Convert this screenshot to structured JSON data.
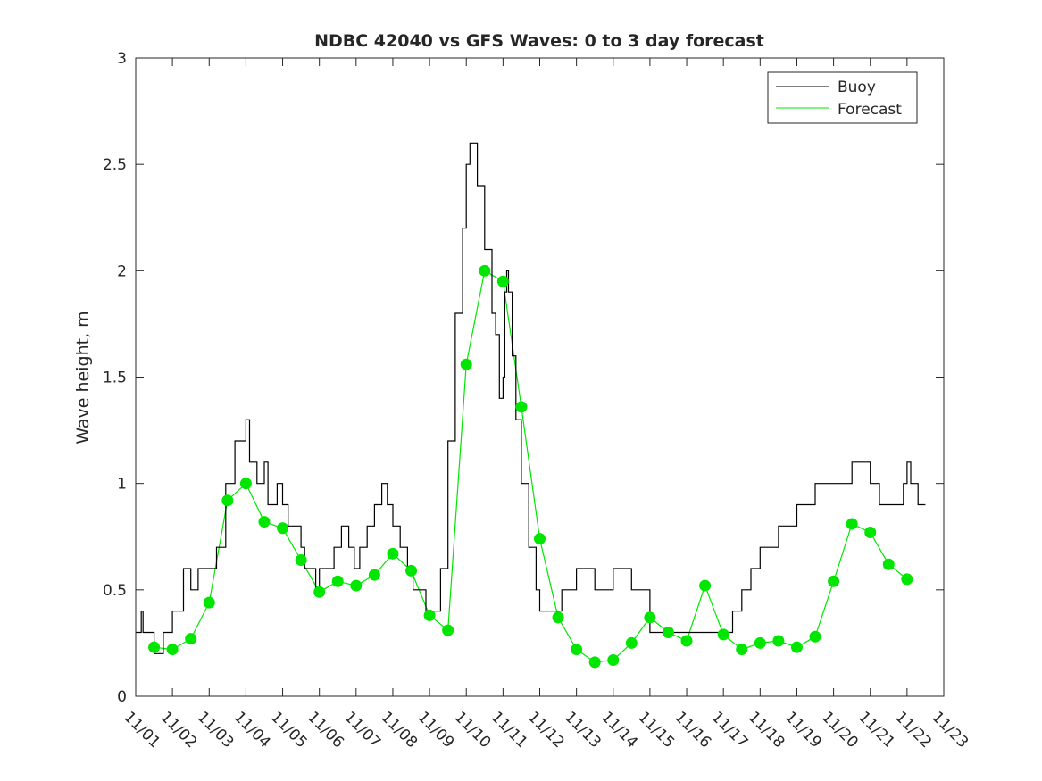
{
  "chart_data": {
    "type": "line",
    "title": "NDBC 42040 vs GFS Waves: 0 to 3 day forecast",
    "xlabel": "",
    "ylabel": "Wave height, m",
    "xlim": [
      0,
      22
    ],
    "ylim": [
      0,
      3
    ],
    "x_tick_values": [
      0,
      1,
      2,
      3,
      4,
      5,
      6,
      7,
      8,
      9,
      10,
      11,
      12,
      13,
      14,
      15,
      16,
      17,
      18,
      19,
      20,
      21,
      22
    ],
    "x_tick_labels": [
      "11/01",
      "11/02",
      "11/03",
      "11/04",
      "11/05",
      "11/06",
      "11/07",
      "11/08",
      "11/09",
      "11/10",
      "11/11",
      "11/12",
      "11/13",
      "11/14",
      "11/15",
      "11/16",
      "11/17",
      "11/18",
      "11/19",
      "11/20",
      "11/21",
      "11/22",
      "11/23"
    ],
    "y_tick_values": [
      0,
      0.5,
      1,
      1.5,
      2,
      2.5,
      3
    ],
    "y_tick_labels": [
      "0",
      "0.5",
      "1",
      "1.5",
      "2",
      "2.5",
      "3"
    ],
    "grid": false,
    "legend": {
      "position": "top-right",
      "entries": [
        "Buoy",
        "Forecast"
      ]
    },
    "colors": {
      "buoy": "#000000",
      "forecast": "#00e600",
      "axis": "#262626"
    },
    "series": [
      {
        "name": "Buoy",
        "x": [
          0.0,
          0.15,
          0.2,
          0.5,
          0.75,
          1.0,
          1.3,
          1.5,
          1.7,
          2.0,
          2.2,
          2.45,
          2.7,
          3.0,
          3.1,
          3.3,
          3.5,
          3.6,
          3.75,
          3.85,
          4.0,
          4.15,
          4.3,
          4.5,
          4.6,
          4.8,
          4.9,
          5.0,
          5.2,
          5.4,
          5.6,
          5.8,
          5.95,
          6.1,
          6.3,
          6.5,
          6.7,
          6.85,
          7.0,
          7.2,
          7.4,
          7.55,
          7.7,
          7.9,
          8.1,
          8.3,
          8.5,
          8.7,
          8.9,
          9.0,
          9.1,
          9.3,
          9.5,
          9.7,
          9.8,
          9.9,
          10.0,
          10.05,
          10.1,
          10.15,
          10.25,
          10.35,
          10.5,
          10.7,
          10.9,
          11.0,
          11.1,
          11.25,
          11.4,
          11.6,
          11.8,
          12.0,
          12.5,
          13.0,
          13.5,
          14.0,
          14.5,
          15.0,
          15.5,
          16.0,
          16.25,
          16.5,
          16.75,
          17.0,
          17.5,
          18.0,
          18.5,
          19.0,
          19.5,
          20.0,
          20.25,
          20.5,
          20.75,
          20.9,
          21.0,
          21.1,
          21.3,
          21.5
        ],
        "values": [
          0.3,
          0.4,
          0.3,
          0.2,
          0.3,
          0.4,
          0.6,
          0.5,
          0.6,
          0.6,
          0.7,
          1.0,
          1.2,
          1.3,
          1.1,
          1.0,
          1.1,
          0.9,
          0.9,
          1.0,
          0.9,
          0.8,
          0.8,
          0.7,
          0.6,
          0.6,
          0.5,
          0.6,
          0.6,
          0.7,
          0.8,
          0.7,
          0.6,
          0.7,
          0.8,
          0.9,
          1.0,
          0.9,
          0.8,
          0.7,
          0.6,
          0.5,
          0.5,
          0.4,
          0.4,
          0.6,
          1.2,
          1.8,
          2.2,
          2.5,
          2.6,
          2.4,
          2.1,
          1.8,
          1.7,
          1.4,
          1.5,
          1.9,
          2.0,
          1.9,
          1.6,
          1.3,
          1.0,
          0.7,
          0.5,
          0.4,
          0.4,
          0.4,
          0.4,
          0.5,
          0.5,
          0.6,
          0.5,
          0.6,
          0.5,
          0.3,
          0.3,
          0.3,
          0.3,
          0.3,
          0.4,
          0.5,
          0.6,
          0.7,
          0.8,
          0.9,
          1.0,
          1.0,
          1.1,
          1.0,
          0.9,
          0.9,
          0.9,
          1.0,
          1.1,
          1.0,
          0.9,
          0.9
        ]
      },
      {
        "name": "Forecast",
        "x": [
          0.5,
          1.0,
          1.5,
          2.0,
          2.5,
          3.0,
          3.5,
          4.0,
          4.5,
          5.0,
          5.5,
          6.0,
          6.5,
          7.0,
          7.5,
          8.0,
          8.5,
          9.0,
          9.5,
          10.0,
          10.5,
          11.0,
          11.5,
          12.0,
          12.5,
          13.0,
          13.5,
          14.0,
          14.5,
          15.0,
          15.5,
          16.0,
          16.5,
          17.0,
          17.5,
          18.0,
          18.5,
          19.0,
          19.5,
          20.0,
          20.5,
          21.0
        ],
        "values": [
          0.23,
          0.22,
          0.27,
          0.44,
          0.92,
          1.0,
          0.82,
          0.79,
          0.64,
          0.49,
          0.54,
          0.52,
          0.57,
          0.67,
          0.59,
          0.38,
          0.31,
          1.56,
          2.0,
          1.95,
          1.36,
          0.74,
          0.37,
          0.22,
          0.16,
          0.17,
          0.25,
          0.37,
          0.3,
          0.26,
          0.52,
          0.29,
          0.22,
          0.25,
          0.26,
          0.23,
          0.28,
          0.54,
          0.81,
          0.77,
          0.62,
          0.55
        ]
      }
    ]
  }
}
